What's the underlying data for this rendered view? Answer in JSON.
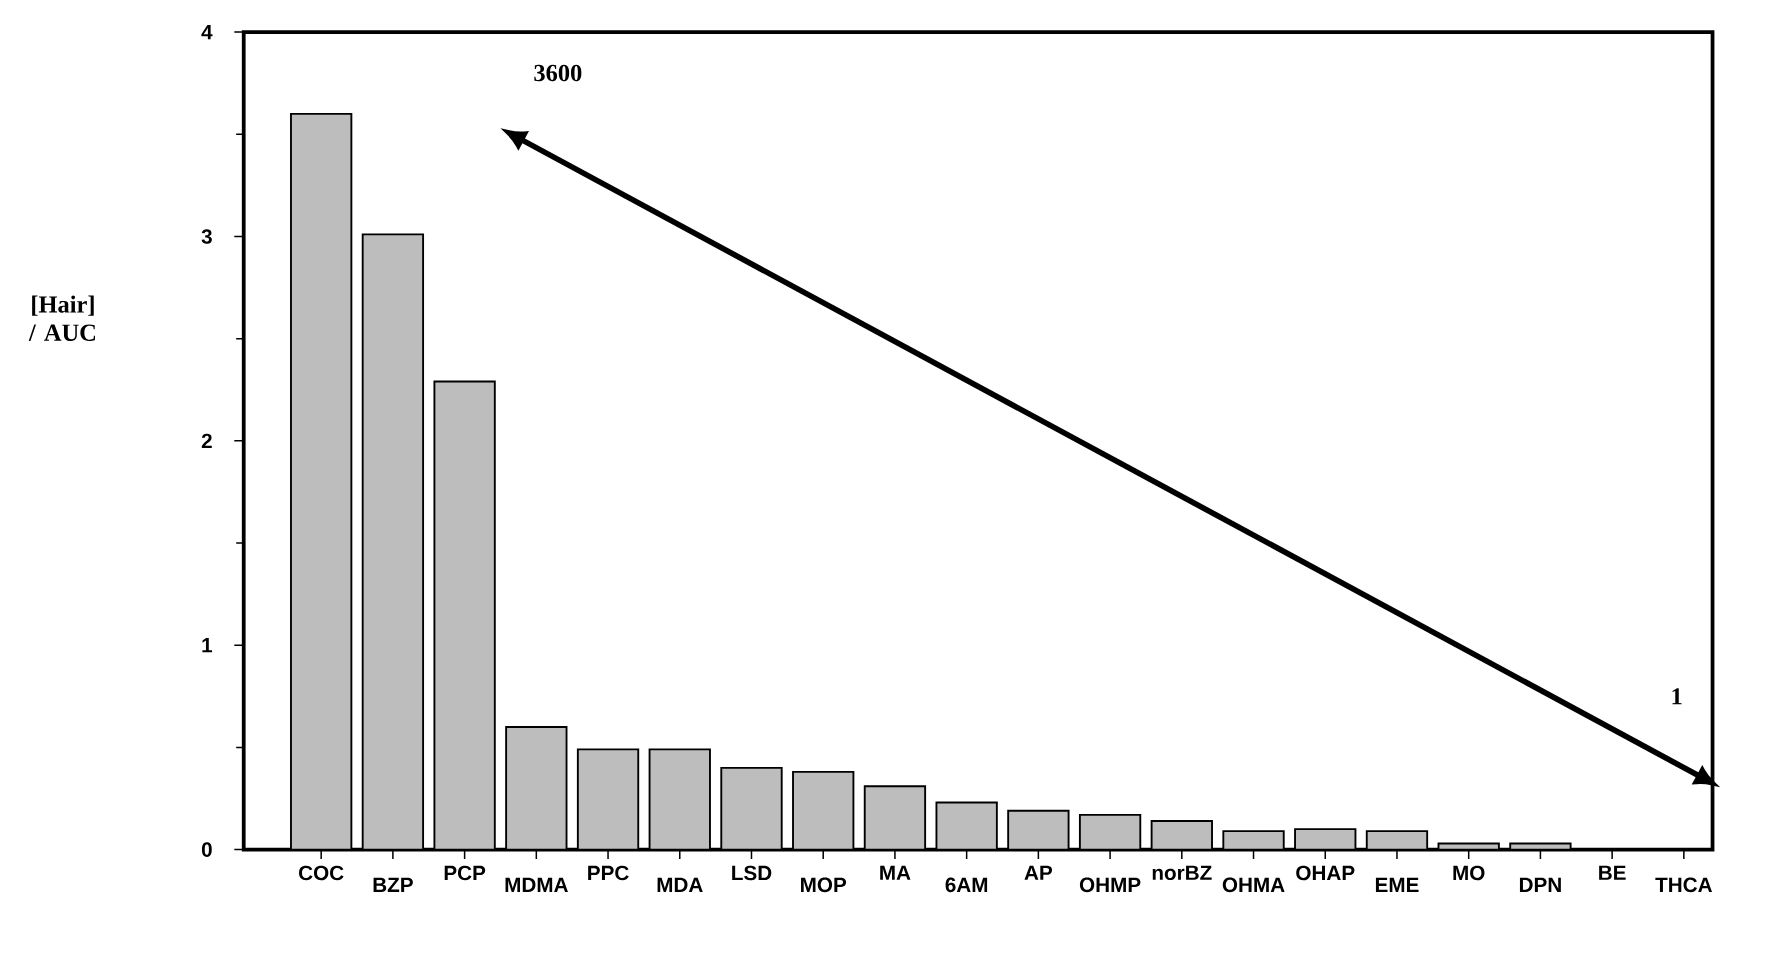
{
  "chart_data": {
    "type": "bar",
    "ylabel": "[Hair] / AUC",
    "categories": [
      "COC",
      "BZP",
      "PCP",
      "MDMA",
      "PPC",
      "MDA",
      "LSD",
      "MOP",
      "MA",
      "6AM",
      "AP",
      "OHMP",
      "norBZ",
      "OHMA",
      "OHAP",
      "EME",
      "MO",
      "DPN",
      "BE",
      "THCA"
    ],
    "values": [
      3.6,
      3.01,
      2.29,
      0.6,
      0.49,
      0.49,
      0.4,
      0.38,
      0.31,
      0.23,
      0.19,
      0.17,
      0.14,
      0.09,
      0.1,
      0.09,
      0.03,
      0.03,
      null,
      null
    ],
    "color": "#bdbdbd",
    "ylim": [
      0,
      4
    ],
    "yticks": [
      0,
      1,
      2,
      3,
      4
    ],
    "annotations": [
      "3600",
      "1"
    ]
  }
}
